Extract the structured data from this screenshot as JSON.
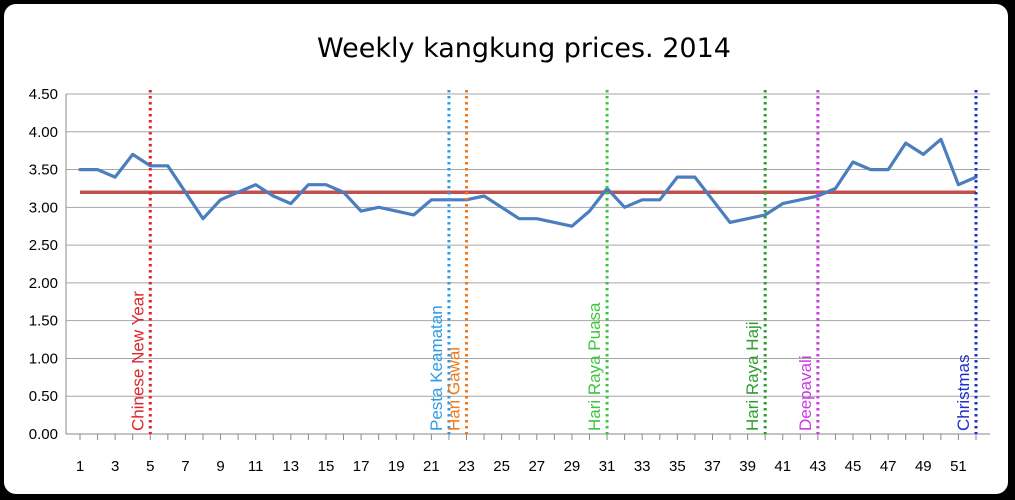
{
  "chart_data": {
    "type": "line",
    "title": "Weekly kangkung prices. 2014",
    "xlabel": "",
    "ylabel": "",
    "ylim": [
      0,
      4.5
    ],
    "yticks": [
      "0.00",
      "0.50",
      "1.00",
      "1.50",
      "2.00",
      "2.50",
      "3.00",
      "3.50",
      "4.00",
      "4.50"
    ],
    "xlim": [
      1,
      52
    ],
    "xticks": [
      "1",
      "3",
      "5",
      "7",
      "9",
      "11",
      "13",
      "15",
      "17",
      "19",
      "21",
      "23",
      "25",
      "27",
      "29",
      "31",
      "33",
      "35",
      "37",
      "39",
      "41",
      "43",
      "45",
      "47",
      "49",
      "51"
    ],
    "grid": "horizontal",
    "series": [
      {
        "color": "#4a7ebf",
        "x": [
          1,
          2,
          3,
          4,
          5,
          6,
          7,
          8,
          9,
          10,
          11,
          12,
          13,
          14,
          15,
          16,
          17,
          18,
          19,
          20,
          21,
          22,
          23,
          24,
          25,
          26,
          27,
          28,
          29,
          30,
          31,
          32,
          33,
          34,
          35,
          36,
          37,
          38,
          39,
          40,
          41,
          42,
          43,
          44,
          45,
          46,
          47,
          48,
          49,
          50,
          51,
          52
        ],
        "values": [
          3.5,
          3.5,
          3.4,
          3.7,
          3.55,
          3.55,
          3.2,
          2.85,
          3.1,
          3.2,
          3.3,
          3.15,
          3.05,
          3.3,
          3.3,
          3.2,
          2.95,
          3.0,
          2.95,
          2.9,
          3.1,
          3.1,
          3.1,
          3.15,
          3.0,
          2.85,
          2.85,
          2.8,
          2.75,
          2.95,
          3.25,
          3.0,
          3.1,
          3.1,
          3.4,
          3.4,
          3.1,
          2.8,
          2.85,
          2.9,
          3.05,
          3.1,
          3.15,
          3.25,
          3.6,
          3.5,
          3.5,
          3.85,
          3.7,
          3.9,
          3.3,
          3.4
        ]
      }
    ],
    "reference_line": {
      "y": 3.2,
      "color": "#c0504d"
    },
    "events": [
      {
        "label": "Chinese New Year",
        "week": 5,
        "color": "#e0242b"
      },
      {
        "label": "Pesta Keamatan",
        "week": 22,
        "color": "#2e9be6"
      },
      {
        "label": "Hari Gawai",
        "week": 23,
        "color": "#ef7a1e"
      },
      {
        "label": "Hari Raya Puasa",
        "week": 31,
        "color": "#3fc43f"
      },
      {
        "label": "Hari Raya Haji",
        "week": 40,
        "color": "#2d9e2d"
      },
      {
        "label": "Deepavali",
        "week": 43,
        "color": "#c83ce0"
      },
      {
        "label": "Christmas",
        "week": 52,
        "color": "#1f2fc9"
      }
    ]
  }
}
